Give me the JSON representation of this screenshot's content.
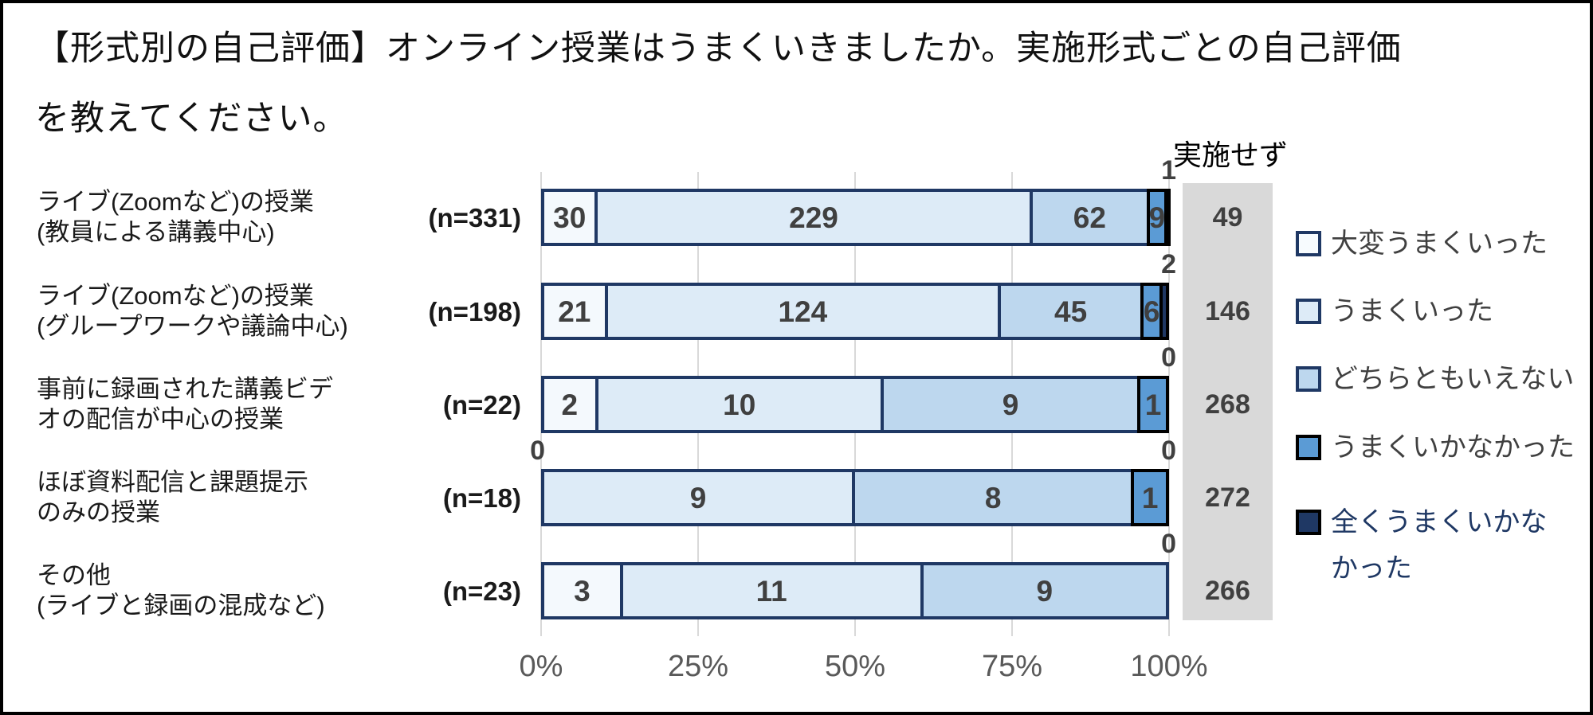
{
  "title": {
    "line1": "【形式別の自己評価】オンライン授業はうまくいきましたか。実施形式ごとの自己評価",
    "line2": "を教えてください。"
  },
  "chart_data": {
    "type": "bar",
    "stacked": true,
    "orientation": "horizontal",
    "x_axis": {
      "ticks": [
        "0%",
        "25%",
        "50%",
        "75%",
        "100%"
      ],
      "range": [
        0,
        100
      ],
      "unit": "percent of each row's n"
    },
    "grid": "vertical-lines",
    "series_labels": [
      "大変うまくいった",
      "うまくいった",
      "どちらともいえない",
      "うまくいかなかった",
      "全くうまくいかなかった"
    ],
    "series_colors": [
      "#F4F9FD",
      "#DDEBF7",
      "#BDD7EE",
      "#5B9BD5",
      "#1F3864"
    ],
    "series_border_colors": [
      "#1F3864",
      "#1F3864",
      "#1F3864",
      "#000000",
      "#000000"
    ],
    "not_conducted_header": "実施せず",
    "categories": [
      {
        "label_line1": "ライブ(Zoomなど)の授業",
        "label_line2": "(教員による講義中心)",
        "n_label": "(n=331)",
        "n": 331,
        "values": [
          30,
          229,
          62,
          9,
          1
        ],
        "last_label": "1",
        "left_zero_label": null,
        "not_conducted": 49
      },
      {
        "label_line1": "ライブ(Zoomなど)の授業",
        "label_line2": "(グループワークや議論中心)",
        "n_label": "(n=198)",
        "n": 198,
        "values": [
          21,
          124,
          45,
          6,
          2
        ],
        "last_label": "2",
        "left_zero_label": null,
        "not_conducted": 146
      },
      {
        "label_line1": "事前に録画された講義ビデ",
        "label_line2": "オの配信が中心の授業",
        "n_label": "(n=22)",
        "n": 22,
        "values": [
          2,
          10,
          9,
          1,
          0
        ],
        "last_label": "0",
        "left_zero_label": null,
        "not_conducted": 268
      },
      {
        "label_line1": "ほぼ資料配信と課題提示",
        "label_line2": "のみの授業",
        "n_label": "(n=18)",
        "n": 18,
        "values": [
          0,
          9,
          8,
          1,
          0
        ],
        "last_label": "0",
        "left_zero_label": "0",
        "not_conducted": 272
      },
      {
        "label_line1": "その他",
        "label_line2": "(ライブと録画の混成など)",
        "n_label": "(n=23)",
        "n": 23,
        "values": [
          3,
          11,
          9,
          0,
          0
        ],
        "last_label": "0",
        "left_zero_label": null,
        "not_conducted": 266
      }
    ]
  },
  "legend": {
    "items": [
      {
        "label": "大変うまくいった",
        "fill": "#F7FBFE",
        "border": "#1F3864",
        "text_color": "#404040"
      },
      {
        "label": "うまくいった",
        "fill": "#DDEBF7",
        "border": "#1F3864",
        "text_color": "#404040"
      },
      {
        "label": "どちらともいえない",
        "fill": "#BDD7EE",
        "border": "#1F3864",
        "text_color": "#404040"
      },
      {
        "label": "うまくいかなかった",
        "fill": "#5B9BD5",
        "border": "#000000",
        "text_color": "#404040"
      },
      {
        "label_line1": "全くうまくいかな",
        "label_line2": "かった",
        "fill": "#1F3864",
        "border": "#000000",
        "text_color": "#1F3864"
      }
    ]
  },
  "colors": {
    "gridline": "#d9d9d9",
    "not_conducted_column_bg": "#d9d9d9",
    "value_label": "#404040",
    "axis_label": "#595959"
  }
}
